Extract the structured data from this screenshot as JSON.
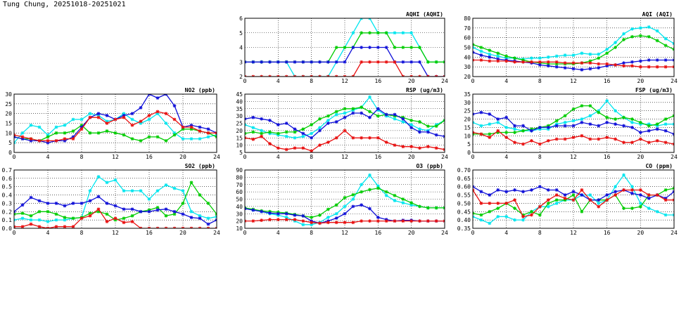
{
  "page": {
    "title": "Tung Chung, 20251018-20251021"
  },
  "colors": {
    "series": [
      "#00e5ee",
      "#00cc00",
      "#1010d8",
      "#e81010"
    ],
    "grid": "#000000",
    "frame": "#000000",
    "background": "#ffffff"
  },
  "chart_data": [
    {
      "id": "aqhi",
      "type": "line",
      "title": "AQHI (AQHI)",
      "xlim": [
        0,
        24
      ],
      "xticks": [
        0,
        4,
        8,
        12,
        16,
        20,
        24
      ],
      "ylim": [
        2,
        6
      ],
      "yticks": [
        2,
        3,
        4,
        5,
        6
      ],
      "series": [
        {
          "name": "series-cyan",
          "values": [
            3,
            3,
            3,
            3,
            3,
            3,
            2,
            2,
            2,
            2,
            2,
            3,
            4,
            5,
            6,
            6,
            5,
            5,
            5,
            5,
            5,
            4,
            3,
            3,
            3
          ]
        },
        {
          "name": "series-green",
          "values": [
            3,
            3,
            3,
            3,
            3,
            3,
            3,
            3,
            3,
            3,
            3,
            4,
            4,
            4,
            5,
            5,
            5,
            5,
            4,
            4,
            4,
            4,
            3,
            3,
            3
          ]
        },
        {
          "name": "series-blue",
          "values": [
            3,
            3,
            3,
            3,
            3,
            3,
            3,
            3,
            3,
            3,
            3,
            3,
            3,
            4,
            4,
            4,
            4,
            4,
            3,
            3,
            3,
            3,
            2,
            2,
            2
          ]
        },
        {
          "name": "series-red",
          "values": [
            2,
            2,
            2,
            2,
            2,
            2,
            2,
            2,
            2,
            2,
            2,
            2,
            2,
            2,
            3,
            3,
            3,
            3,
            3,
            2,
            2,
            2,
            2,
            2,
            2
          ]
        }
      ]
    },
    {
      "id": "aqi",
      "type": "line",
      "title": "AQI (AQI)",
      "xlim": [
        0,
        24
      ],
      "xticks": [
        0,
        4,
        8,
        12,
        16,
        20,
        24
      ],
      "ylim": [
        20,
        80
      ],
      "yticks": [
        20,
        30,
        40,
        50,
        60,
        70,
        80
      ],
      "series": [
        {
          "name": "series-cyan",
          "values": [
            50,
            46,
            43,
            41,
            39,
            39,
            38,
            39,
            39,
            40,
            41,
            42,
            42,
            44,
            43,
            43,
            48,
            55,
            64,
            69,
            70,
            71,
            67,
            59,
            54
          ]
        },
        {
          "name": "series-green",
          "values": [
            53,
            50,
            47,
            44,
            41,
            39,
            37,
            35,
            34,
            33,
            33,
            33,
            33,
            34,
            36,
            39,
            44,
            50,
            58,
            61,
            62,
            61,
            57,
            52,
            48
          ]
        },
        {
          "name": "series-blue",
          "values": [
            45,
            42,
            40,
            38,
            37,
            36,
            35,
            34,
            32,
            31,
            30,
            29,
            28,
            27,
            28,
            29,
            31,
            32,
            34,
            35,
            36,
            37,
            37,
            37,
            37
          ]
        },
        {
          "name": "series-red",
          "values": [
            37,
            37,
            36,
            36,
            36,
            35,
            35,
            35,
            35,
            35,
            35,
            34,
            34,
            34,
            34,
            33,
            33,
            32,
            31,
            31,
            30,
            30,
            30,
            30,
            30
          ]
        }
      ]
    },
    {
      "id": "no2",
      "type": "line",
      "title": "NO2 (ppb)",
      "xlim": [
        0,
        24
      ],
      "xticks": [
        0,
        4,
        8,
        12,
        16,
        20,
        24
      ],
      "ylim": [
        0,
        30
      ],
      "yticks": [
        0,
        5,
        10,
        15,
        20,
        25,
        30
      ],
      "series": [
        {
          "name": "series-cyan",
          "values": [
            5,
            10,
            14,
            13,
            9,
            13,
            14,
            17,
            17,
            20,
            19,
            16,
            17,
            20,
            17,
            15,
            17,
            20,
            15,
            10,
            7,
            7,
            7,
            8,
            9
          ]
        },
        {
          "name": "series-green",
          "values": [
            8,
            7,
            7,
            6,
            8,
            10,
            10,
            11,
            14,
            10,
            10,
            11,
            10,
            9,
            7,
            6,
            8,
            8,
            6,
            9,
            12,
            12,
            11,
            10,
            8
          ]
        },
        {
          "name": "series-blue",
          "values": [
            8,
            7,
            6,
            6,
            5,
            6,
            6,
            8,
            13,
            18,
            20,
            19,
            17,
            19,
            20,
            23,
            30,
            28,
            30,
            24,
            13,
            14,
            13,
            12,
            10
          ]
        },
        {
          "name": "series-red",
          "values": [
            9,
            8,
            7,
            6,
            6,
            6,
            7,
            7,
            12,
            18,
            18,
            15,
            17,
            18,
            14,
            16,
            19,
            21,
            20,
            17,
            13,
            13,
            11,
            10,
            10
          ]
        }
      ]
    },
    {
      "id": "rsp",
      "type": "line",
      "title": "RSP (ug/m3)",
      "xlim": [
        0,
        24
      ],
      "xticks": [
        0,
        4,
        8,
        12,
        16,
        20,
        24
      ],
      "ylim": [
        5,
        45
      ],
      "yticks": [
        5,
        10,
        15,
        20,
        25,
        30,
        35,
        40,
        45
      ],
      "series": [
        {
          "name": "series-cyan",
          "values": [
            24,
            22,
            20,
            18,
            17,
            16,
            15,
            16,
            18,
            22,
            27,
            31,
            32,
            34,
            36,
            43,
            34,
            30,
            28,
            26,
            24,
            21,
            20,
            24,
            27
          ]
        },
        {
          "name": "series-green",
          "values": [
            18,
            19,
            18,
            19,
            18,
            19,
            19,
            21,
            24,
            28,
            30,
            33,
            35,
            35,
            36,
            33,
            30,
            31,
            30,
            29,
            27,
            26,
            23,
            23,
            27
          ]
        },
        {
          "name": "series-blue",
          "values": [
            28,
            29,
            28,
            27,
            24,
            25,
            21,
            18,
            15,
            20,
            25,
            26,
            29,
            32,
            32,
            29,
            35,
            31,
            31,
            28,
            22,
            19,
            19,
            17,
            16
          ]
        },
        {
          "name": "series-red",
          "values": [
            15,
            14,
            16,
            11,
            8,
            7,
            8,
            8,
            6,
            10,
            12,
            15,
            20,
            15,
            15,
            15,
            15,
            12,
            10,
            9,
            9,
            8,
            9,
            8,
            7
          ]
        }
      ]
    },
    {
      "id": "fsp",
      "type": "line",
      "title": "FSP (ug/m3)",
      "xlim": [
        0,
        24
      ],
      "xticks": [
        0,
        4,
        8,
        12,
        16,
        20,
        24
      ],
      "ylim": [
        0,
        35
      ],
      "yticks": [
        0,
        5,
        10,
        15,
        20,
        25,
        30,
        35
      ],
      "series": [
        {
          "name": "series-cyan",
          "values": [
            18,
            16,
            17,
            18,
            15,
            14,
            13,
            13,
            14,
            14,
            17,
            18,
            19,
            20,
            22,
            25,
            31,
            25,
            21,
            18,
            17,
            17,
            16,
            17,
            17
          ]
        },
        {
          "name": "series-green",
          "values": [
            11,
            11,
            11,
            12,
            12,
            12,
            13,
            14,
            15,
            16,
            19,
            22,
            26,
            28,
            28,
            24,
            21,
            20,
            21,
            20,
            18,
            16,
            17,
            20,
            22
          ]
        },
        {
          "name": "series-blue",
          "values": [
            23,
            24,
            23,
            20,
            21,
            16,
            16,
            13,
            15,
            15,
            16,
            16,
            16,
            18,
            17,
            16,
            18,
            17,
            16,
            15,
            12,
            13,
            14,
            13,
            11
          ]
        },
        {
          "name": "series-red",
          "values": [
            12,
            11,
            9,
            13,
            9,
            6,
            5,
            7,
            5,
            7,
            8,
            8,
            9,
            10,
            8,
            8,
            9,
            8,
            6,
            6,
            8,
            6,
            7,
            6,
            5
          ]
        }
      ]
    },
    {
      "id": "so2",
      "type": "line",
      "title": "SO2 (ppb)",
      "xlim": [
        0,
        24
      ],
      "xticks": [
        0,
        4,
        8,
        12,
        16,
        20,
        24
      ],
      "ylim": [
        0.0,
        0.7
      ],
      "yticks": [
        0.0,
        0.1,
        0.2,
        0.3,
        0.4,
        0.5,
        0.6,
        0.7
      ],
      "series": [
        {
          "name": "series-cyan",
          "values": [
            0.1,
            0.12,
            0.1,
            0.1,
            0.08,
            0.1,
            0.1,
            0.12,
            0.13,
            0.45,
            0.62,
            0.55,
            0.58,
            0.45,
            0.45,
            0.45,
            0.35,
            0.45,
            0.52,
            0.48,
            0.45,
            0.2,
            0.15,
            0.12,
            0.14
          ]
        },
        {
          "name": "series-green",
          "values": [
            0.17,
            0.18,
            0.15,
            0.2,
            0.2,
            0.17,
            0.13,
            0.12,
            0.13,
            0.18,
            0.2,
            0.17,
            0.1,
            0.12,
            0.15,
            0.2,
            0.22,
            0.25,
            0.15,
            0.17,
            0.3,
            0.55,
            0.4,
            0.3,
            0.17
          ]
        },
        {
          "name": "series-blue",
          "values": [
            0.2,
            0.28,
            0.37,
            0.33,
            0.3,
            0.3,
            0.27,
            0.3,
            0.3,
            0.33,
            0.38,
            0.3,
            0.27,
            0.23,
            0.23,
            0.2,
            0.2,
            0.22,
            0.23,
            0.2,
            0.17,
            0.13,
            0.12,
            0.05,
            0.1
          ]
        },
        {
          "name": "series-red",
          "values": [
            0.02,
            0.02,
            0.05,
            0.02,
            0.0,
            0.02,
            0.02,
            0.02,
            0.12,
            0.15,
            0.23,
            0.08,
            0.12,
            0.07,
            0.08,
            0.0,
            0.0,
            0.0,
            0.0,
            0.0,
            0.0,
            0.0,
            0.0,
            0.0,
            0.0
          ]
        }
      ]
    },
    {
      "id": "o3",
      "type": "line",
      "title": "O3 (ppb)",
      "xlim": [
        0,
        24
      ],
      "xticks": [
        0,
        4,
        8,
        12,
        16,
        20,
        24
      ],
      "ylim": [
        10,
        90
      ],
      "yticks": [
        10,
        20,
        30,
        40,
        50,
        60,
        70,
        80,
        90
      ],
      "series": [
        {
          "name": "series-cyan",
          "values": [
            37,
            35,
            33,
            30,
            28,
            25,
            20,
            15,
            15,
            18,
            25,
            30,
            40,
            50,
            70,
            83,
            68,
            55,
            48,
            45,
            42,
            40,
            38,
            38,
            38
          ]
        },
        {
          "name": "series-green",
          "values": [
            38,
            36,
            34,
            33,
            32,
            31,
            29,
            27,
            25,
            28,
            36,
            42,
            52,
            56,
            60,
            63,
            65,
            60,
            55,
            50,
            45,
            40,
            38,
            38,
            38
          ]
        },
        {
          "name": "series-blue",
          "values": [
            37,
            35,
            33,
            31,
            30,
            30,
            28,
            27,
            20,
            17,
            20,
            24,
            30,
            40,
            42,
            37,
            25,
            22,
            20,
            21,
            21,
            20,
            20,
            20,
            20
          ]
        },
        {
          "name": "series-red",
          "values": [
            20,
            20,
            21,
            22,
            22,
            22,
            22,
            20,
            18,
            17,
            18,
            18,
            18,
            18,
            20,
            20,
            20,
            20,
            20,
            20,
            20,
            20,
            20,
            20,
            20
          ]
        }
      ]
    },
    {
      "id": "co",
      "type": "line",
      "title": "CO (ppm)",
      "xlim": [
        0,
        24
      ],
      "xticks": [
        0,
        4,
        8,
        12,
        16,
        20,
        24
      ],
      "ylim": [
        0.35,
        0.7
      ],
      "yticks": [
        0.35,
        0.4,
        0.45,
        0.5,
        0.55,
        0.6,
        0.65,
        0.7
      ],
      "series": [
        {
          "name": "series-cyan",
          "values": [
            0.42,
            0.4,
            0.38,
            0.42,
            0.42,
            0.4,
            0.4,
            0.45,
            0.48,
            0.48,
            0.5,
            0.52,
            0.52,
            0.55,
            0.55,
            0.5,
            0.52,
            0.6,
            0.67,
            0.6,
            0.5,
            0.47,
            0.45,
            0.43,
            0.43
          ]
        },
        {
          "name": "series-green",
          "values": [
            0.44,
            0.43,
            0.45,
            0.47,
            0.5,
            0.47,
            0.43,
            0.45,
            0.43,
            0.5,
            0.52,
            0.52,
            0.55,
            0.45,
            0.52,
            0.52,
            0.52,
            0.55,
            0.47,
            0.47,
            0.48,
            0.55,
            0.55,
            0.58,
            0.59
          ]
        },
        {
          "name": "series-blue",
          "values": [
            0.6,
            0.57,
            0.55,
            0.58,
            0.57,
            0.58,
            0.57,
            0.58,
            0.6,
            0.58,
            0.58,
            0.55,
            0.57,
            0.55,
            0.52,
            0.52,
            0.55,
            0.57,
            0.58,
            0.56,
            0.55,
            0.53,
            0.55,
            0.53,
            0.57
          ]
        },
        {
          "name": "series-red",
          "values": [
            0.58,
            0.5,
            0.5,
            0.5,
            0.5,
            0.52,
            0.42,
            0.43,
            0.48,
            0.52,
            0.55,
            0.53,
            0.52,
            0.58,
            0.52,
            0.48,
            0.52,
            0.55,
            0.58,
            0.58,
            0.58,
            0.55,
            0.55,
            0.52,
            0.52
          ]
        }
      ]
    }
  ]
}
